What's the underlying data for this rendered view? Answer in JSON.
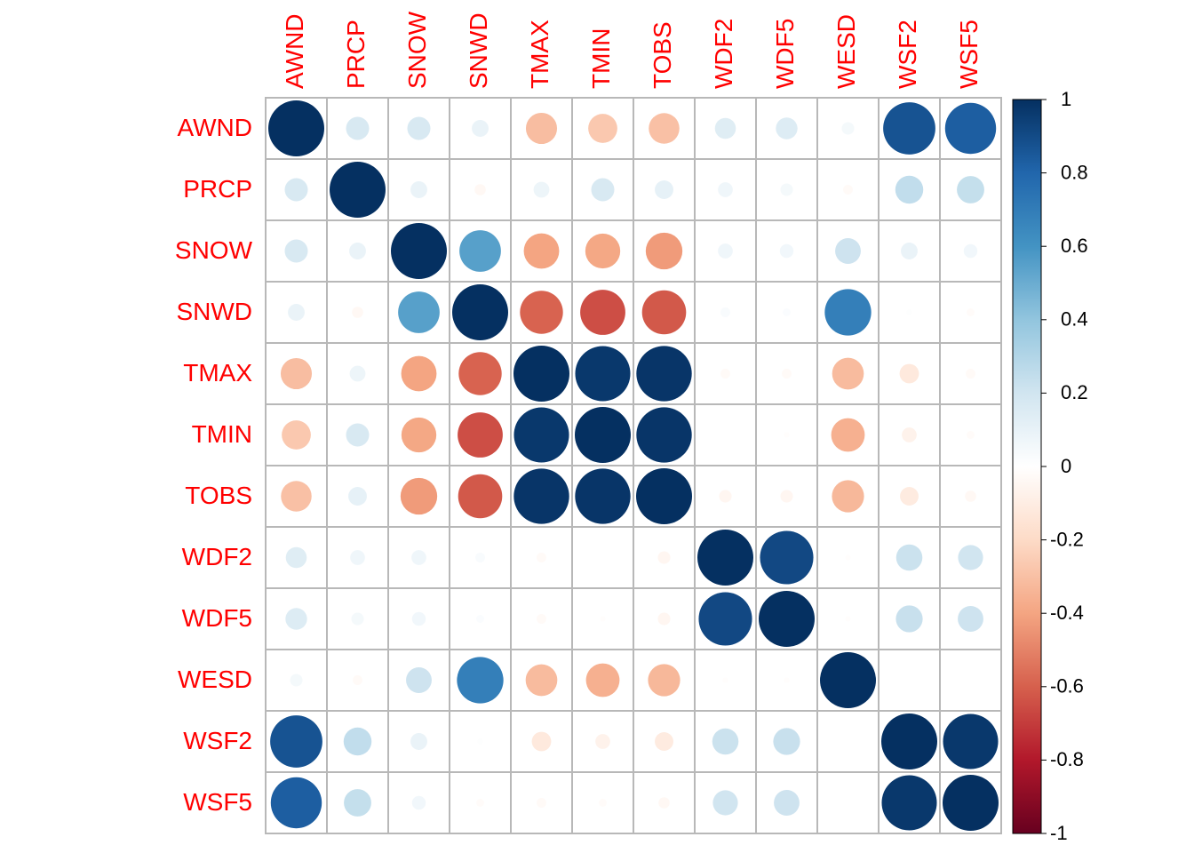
{
  "chart_data": {
    "type": "heatmap",
    "style": "correlation-circles",
    "title": "",
    "variables": [
      "AWND",
      "PRCP",
      "SNOW",
      "SNWD",
      "TMAX",
      "TMIN",
      "TOBS",
      "WDF2",
      "WDF5",
      "WESD",
      "WSF2",
      "WSF5"
    ],
    "matrix": [
      [
        1.0,
        0.17,
        0.17,
        0.09,
        -0.31,
        -0.27,
        -0.3,
        0.14,
        0.15,
        0.05,
        0.87,
        0.83
      ],
      [
        0.17,
        1.0,
        0.09,
        -0.04,
        0.08,
        0.17,
        0.11,
        0.07,
        0.05,
        -0.03,
        0.25,
        0.24
      ],
      [
        0.17,
        0.09,
        1.0,
        0.55,
        -0.4,
        -0.39,
        -0.43,
        0.07,
        0.06,
        0.21,
        0.09,
        0.06
      ],
      [
        0.09,
        -0.04,
        0.55,
        1.0,
        -0.59,
        -0.65,
        -0.62,
        0.03,
        0.02,
        0.69,
        0.01,
        -0.02
      ],
      [
        -0.31,
        0.08,
        -0.4,
        -0.59,
        1.0,
        0.97,
        0.98,
        -0.03,
        -0.03,
        -0.32,
        -0.12,
        -0.03
      ],
      [
        -0.27,
        0.17,
        -0.39,
        -0.65,
        0.97,
        1.0,
        0.98,
        0.0,
        -0.01,
        -0.36,
        -0.07,
        -0.02
      ],
      [
        -0.3,
        0.11,
        -0.43,
        -0.62,
        0.98,
        0.98,
        1.0,
        -0.05,
        -0.05,
        -0.33,
        -0.11,
        -0.04
      ],
      [
        0.14,
        0.07,
        0.07,
        0.03,
        -0.03,
        0.0,
        -0.05,
        1.0,
        0.91,
        -0.01,
        0.22,
        0.2
      ],
      [
        0.15,
        0.05,
        0.06,
        0.02,
        -0.03,
        -0.01,
        -0.05,
        0.91,
        1.0,
        -0.01,
        0.23,
        0.21
      ],
      [
        0.05,
        -0.03,
        0.21,
        0.69,
        -0.32,
        -0.36,
        -0.33,
        -0.01,
        -0.01,
        1.0,
        0.0,
        0.0
      ],
      [
        0.87,
        0.25,
        0.09,
        0.01,
        -0.12,
        -0.07,
        -0.11,
        0.22,
        0.23,
        0.0,
        1.0,
        0.97
      ],
      [
        0.83,
        0.24,
        0.06,
        -0.02,
        -0.03,
        -0.02,
        -0.04,
        0.2,
        0.21,
        0.0,
        0.97,
        1.0
      ]
    ],
    "colorbar": {
      "range": [
        -1,
        1
      ],
      "ticks": [
        "1",
        "0.8",
        "0.6",
        "0.4",
        "0.2",
        "0",
        "-0.2",
        "-0.4",
        "-0.6",
        "-0.8",
        "-1"
      ],
      "palette": [
        "#67001F",
        "#B2182B",
        "#D6604D",
        "#F4A582",
        "#FDDBC7",
        "#FFFFFF",
        "#D1E5F0",
        "#92C5DE",
        "#4393C3",
        "#2166AC",
        "#053061"
      ]
    },
    "label_color": "#FF0000",
    "grid": true
  }
}
